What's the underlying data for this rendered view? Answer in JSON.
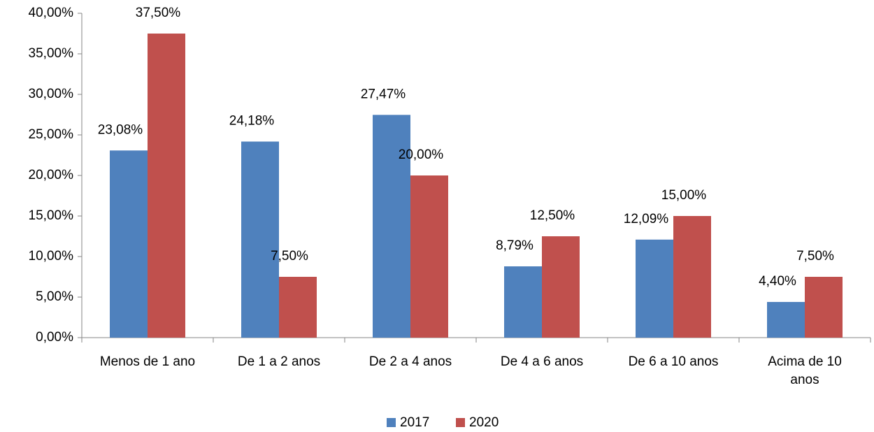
{
  "chart_data": {
    "type": "bar",
    "categories": [
      "Menos de 1 ano",
      "De 1 a 2 anos",
      "De 2 a 4 anos",
      "De 4 a 6 anos",
      "De 6 a 10 anos",
      "Acima de 10 anos"
    ],
    "series": [
      {
        "name": "2017",
        "color": "#4f81bd",
        "values": [
          23.08,
          24.18,
          27.47,
          8.79,
          12.09,
          4.4
        ],
        "value_labels": [
          "23,08%",
          "24,18%",
          "27,47%",
          "8,79%",
          "12,09%",
          "4,40%"
        ]
      },
      {
        "name": "2020",
        "color": "#c0504d",
        "values": [
          37.5,
          7.5,
          20.0,
          12.5,
          15.0,
          7.5
        ],
        "value_labels": [
          "37,50%",
          "7,50%",
          "20,00%",
          "12,50%",
          "15,00%",
          "7,50%"
        ]
      }
    ],
    "ylim": [
      0,
      40
    ],
    "yticks": [
      {
        "value": 0,
        "label": "0,00%"
      },
      {
        "value": 5,
        "label": "5,00%"
      },
      {
        "value": 10,
        "label": "10,00%"
      },
      {
        "value": 15,
        "label": "15,00%"
      },
      {
        "value": 20,
        "label": "20,00%"
      },
      {
        "value": 25,
        "label": "25,00%"
      },
      {
        "value": 30,
        "label": "30,00%"
      },
      {
        "value": 35,
        "label": "35,00%"
      },
      {
        "value": 40,
        "label": "40,00%"
      }
    ],
    "grid": false,
    "legend": "bottom"
  }
}
